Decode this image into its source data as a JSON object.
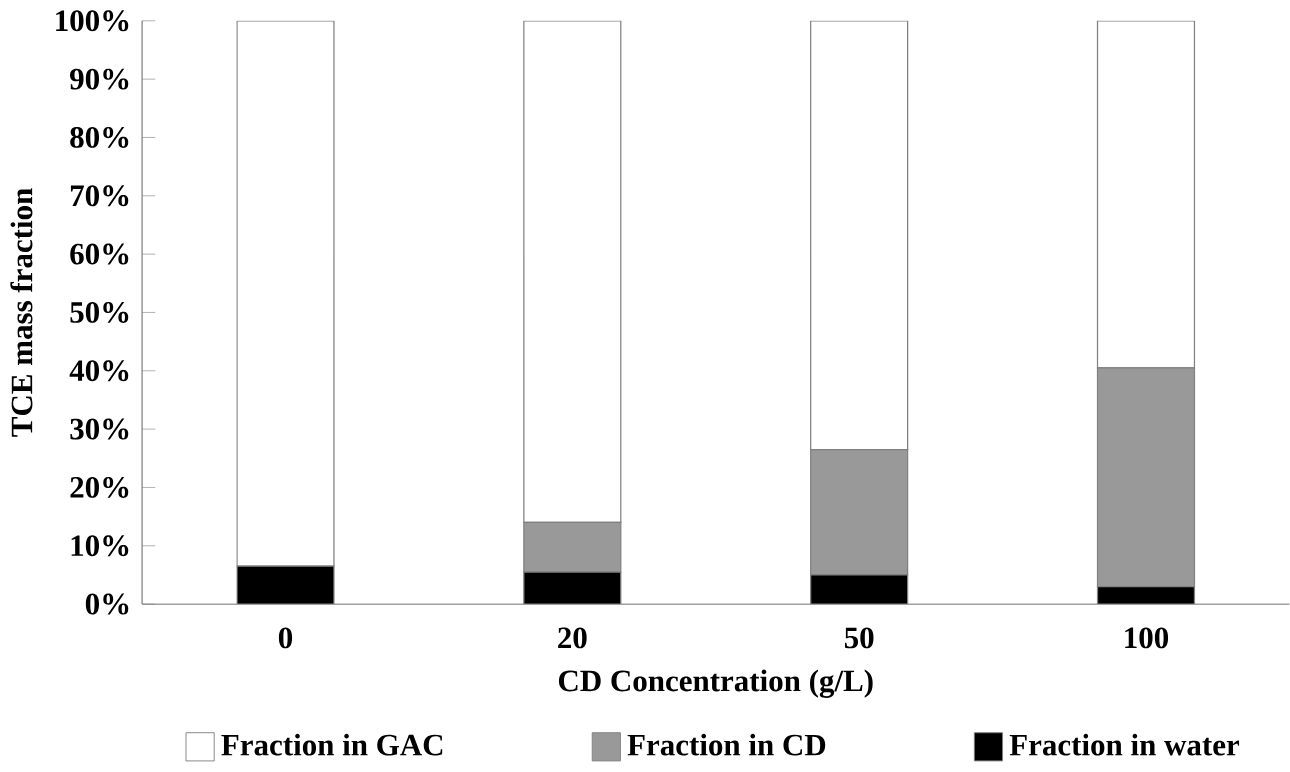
{
  "chart_data": {
    "type": "bar",
    "stacked": true,
    "xlabel": "CD Concentration (g/L)",
    "ylabel": "TCE mass fraction",
    "categories": [
      "0",
      "20",
      "50",
      "100"
    ],
    "series": [
      {
        "name": "Fraction in water",
        "color": "#000000",
        "values": [
          6.5,
          5.5,
          5,
          3
        ]
      },
      {
        "name": "Fraction in CD",
        "color": "#999999",
        "values": [
          0,
          8.5,
          21.5,
          37.5
        ]
      },
      {
        "name": "Fraction in GAC",
        "color": "#ffffff",
        "values": [
          93.5,
          86,
          73.5,
          59.5
        ]
      }
    ],
    "ylim": [
      0,
      100
    ],
    "yticks": [
      {
        "value": 0,
        "label": "0%"
      },
      {
        "value": 10,
        "label": "10%"
      },
      {
        "value": 20,
        "label": "20%"
      },
      {
        "value": 30,
        "label": "30%"
      },
      {
        "value": 40,
        "label": "40%"
      },
      {
        "value": 50,
        "label": "50%"
      },
      {
        "value": 60,
        "label": "60%"
      },
      {
        "value": 70,
        "label": "70%"
      },
      {
        "value": 80,
        "label": "80%"
      },
      {
        "value": 90,
        "label": "90%"
      },
      {
        "value": 100,
        "label": "100%"
      }
    ],
    "legend": "bottom",
    "grid": false
  }
}
